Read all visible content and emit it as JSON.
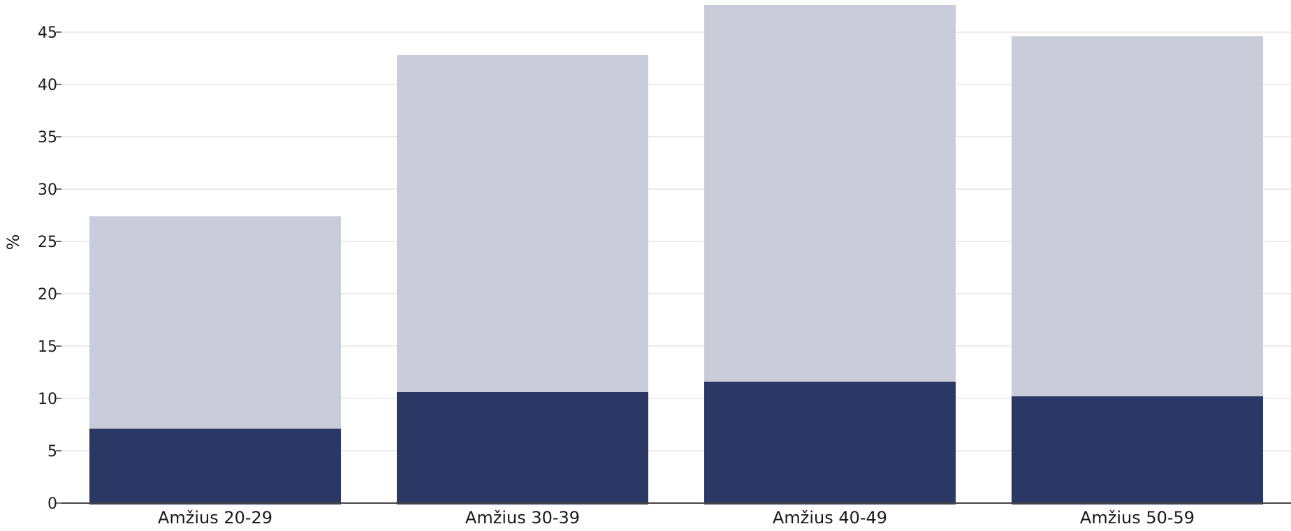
{
  "chart_data": {
    "type": "bar",
    "stacked": true,
    "ylabel": "%",
    "xlabel": "",
    "ylim": [
      0,
      47.5
    ],
    "yticks": [
      0,
      5,
      10,
      15,
      20,
      25,
      30,
      35,
      40,
      45
    ],
    "grid": true,
    "categories": [
      "Amžius 20-29",
      "Amžius 30-39",
      "Amžius 40-49",
      "Amžius 50-59"
    ],
    "series": [
      {
        "values": [
          7.1,
          10.6,
          11.6,
          10.2
        ],
        "color": "#2b3764"
      },
      {
        "values": [
          20.3,
          32.2,
          36.0,
          34.4
        ],
        "color": "#cacdd9"
      }
    ],
    "totals": [
      27.4,
      42.8,
      47.6,
      44.6
    ]
  }
}
